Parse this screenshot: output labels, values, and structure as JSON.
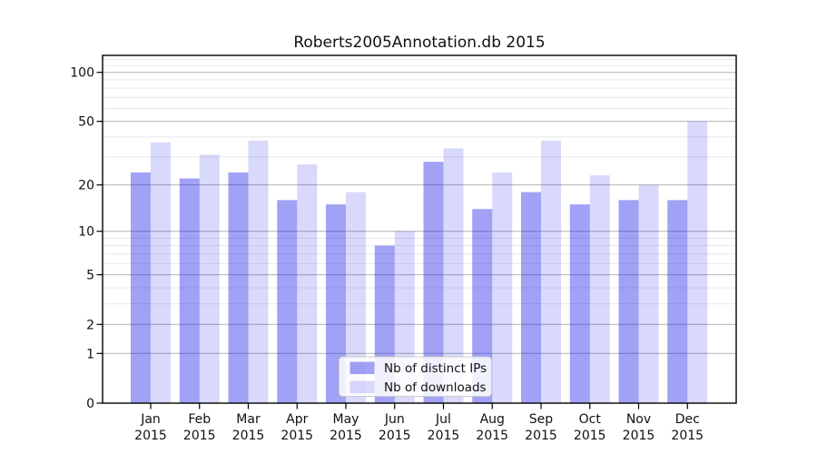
{
  "chart_data": {
    "type": "bar",
    "title": "Roberts2005Annotation.db 2015",
    "categories": [
      "Jan",
      "Feb",
      "Mar",
      "Apr",
      "May",
      "Jun",
      "Jul",
      "Aug",
      "Sep",
      "Oct",
      "Nov",
      "Dec"
    ],
    "category_year": "2015",
    "series": [
      {
        "name": "Nb of distinct IPs",
        "values": [
          24,
          22,
          24,
          16,
          15,
          8,
          28,
          14,
          18,
          15,
          16,
          16
        ],
        "fill": "rgb(30,30,230)",
        "fill_opacity": 0.42
      },
      {
        "name": "Nb of downloads",
        "values": [
          37,
          31,
          38,
          27,
          18,
          10,
          34,
          24,
          38,
          23,
          20,
          50
        ],
        "fill": "rgb(30,30,230)",
        "fill_opacity": 0.17
      }
    ],
    "yscale": "log1p",
    "yticks": [
      0,
      1,
      2,
      5,
      10,
      20,
      50,
      100
    ],
    "yticks_minor": [
      3,
      4,
      6,
      7,
      8,
      9,
      30,
      40,
      60,
      70,
      80,
      90,
      110,
      120
    ],
    "ylim": [
      0,
      127
    ],
    "grid": true,
    "legend_position": "lower center",
    "colors": {
      "grid_major": "#b2b2b2",
      "grid_minor": "#e8e8e8",
      "axis": "#000000",
      "text": "#111111",
      "legend_border": "#cccccc",
      "legend_bg": "#ffffff"
    }
  }
}
